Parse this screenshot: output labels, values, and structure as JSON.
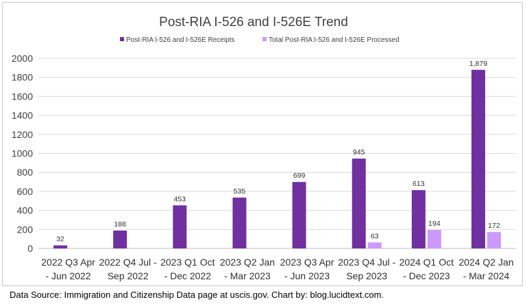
{
  "chart_data": {
    "type": "bar",
    "title": "Post-RIA I-526 and I-526E Trend",
    "categories": [
      [
        "2022 Q3 Apr",
        "- Jun 2022"
      ],
      [
        "2022 Q4 Jul -",
        "Sep 2022"
      ],
      [
        "2023 Q1 Oct",
        "- Dec 2022"
      ],
      [
        "2023 Q2 Jan",
        "- Mar 2023"
      ],
      [
        "2023 Q3 Apr",
        "- Jun 2023"
      ],
      [
        "2023 Q4 Jul -",
        "Sep 2023"
      ],
      [
        "2024 Q1 Oct",
        "- Dec 2023"
      ],
      [
        "2024 Q2 Jan",
        "- Mar 2024"
      ]
    ],
    "series": [
      {
        "name": "Post-RIA I-526 and I-526E Receipts",
        "color": "#7030a0",
        "values": [
          32,
          188,
          453,
          535,
          699,
          945,
          613,
          1879
        ],
        "labels": [
          "32",
          "188",
          "453",
          "535",
          "699",
          "945",
          "613",
          "1,879"
        ]
      },
      {
        "name": "Total Post-RIA I-526 and I-526E Processed",
        "color": "#cc99ff",
        "values": [
          null,
          null,
          null,
          null,
          null,
          63,
          194,
          172
        ],
        "labels": [
          null,
          null,
          null,
          null,
          null,
          "63",
          "194",
          "172"
        ]
      }
    ],
    "yticks": [
      "0",
      "200",
      "400",
      "600",
      "800",
      "1000",
      "1200",
      "1400",
      "1600",
      "1800",
      "2000"
    ],
    "ylim": [
      0,
      2000
    ],
    "xlabel": "",
    "ylabel": "",
    "grid": true,
    "legend": "top-center"
  },
  "source_note": "Data Source: Immigration and Citizenship Data page at uscis.gov. Chart by: blog.lucidtext.com."
}
